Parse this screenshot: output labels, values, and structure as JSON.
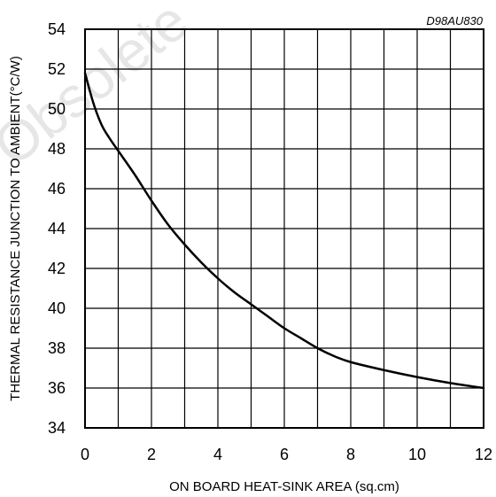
{
  "chart_data": {
    "type": "line",
    "title": "",
    "code": "D98AU830",
    "watermark": "Obsolete",
    "xlabel": "ON BOARD HEAT-SINK AREA (sq.cm)",
    "ylabel": "THERMAL RESISTANCE JUNCTION TO AMBIENT(°C/W)",
    "xlim": [
      0,
      12
    ],
    "ylim": [
      34,
      54
    ],
    "x_ticks": [
      0,
      2,
      4,
      6,
      8,
      10,
      12
    ],
    "y_ticks": [
      34,
      36,
      38,
      40,
      42,
      44,
      46,
      48,
      50,
      52,
      54
    ],
    "x_tick_labels": [
      "0",
      "2",
      "4",
      "6",
      "8",
      "10",
      "12"
    ],
    "y_tick_labels": [
      "34",
      "36",
      "38",
      "40",
      "42",
      "44",
      "46",
      "48",
      "50",
      "52",
      "54"
    ],
    "grid": true,
    "series": [
      {
        "x": [
          0,
          0.25,
          0.5,
          0.75,
          1,
          1.5,
          2,
          2.5,
          3,
          3.5,
          4,
          4.5,
          5,
          5.5,
          6,
          6.5,
          7,
          7.5,
          8,
          9,
          10,
          11,
          12
        ],
        "y": [
          51.8,
          50.3,
          49.2,
          48.5,
          47.9,
          46.7,
          45.4,
          44.2,
          43.2,
          42.3,
          41.5,
          40.8,
          40.2,
          39.6,
          39.0,
          38.5,
          38.0,
          37.6,
          37.3,
          36.9,
          36.55,
          36.25,
          36.0
        ]
      }
    ],
    "colors": {
      "line": "#000000",
      "grid": "#000000",
      "watermark": "#e6e6e6"
    }
  }
}
